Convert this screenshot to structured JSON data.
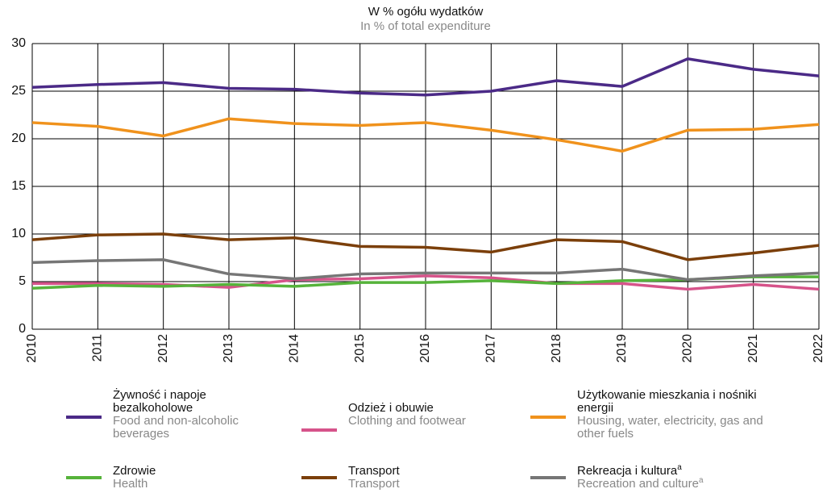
{
  "chart_data": {
    "type": "line",
    "title": "W % ogółu wydatków",
    "subtitle": "In % of total expenditure",
    "categories": [
      "2010",
      "2011",
      "2012",
      "2013",
      "2014",
      "2015",
      "2016",
      "2017",
      "2018",
      "2019",
      "2020",
      "2021",
      "2022"
    ],
    "ylim": [
      0,
      30
    ],
    "yticks": [
      0,
      5,
      10,
      15,
      20,
      25,
      30
    ],
    "grid": true,
    "series": [
      {
        "name": "Żywność i napoje bezalkoholowe",
        "name_en": "Food and non-alcoholic beverages",
        "color": "#4b2a87",
        "values": [
          25.4,
          25.7,
          25.9,
          25.3,
          25.2,
          24.8,
          24.6,
          25.0,
          26.1,
          25.5,
          28.4,
          27.3,
          26.6
        ]
      },
      {
        "name": "Odzież i obuwie",
        "name_en": "Clothing and footwear",
        "color": "#d6538a",
        "values": [
          4.8,
          4.8,
          4.7,
          4.4,
          5.2,
          5.3,
          5.6,
          5.4,
          4.8,
          4.8,
          4.2,
          4.7,
          4.2
        ]
      },
      {
        "name": "Użytkowanie mieszkania i nośniki energii",
        "name_en": "Housing, water, electricity, gas and other fuels",
        "color": "#f0921c",
        "values": [
          21.7,
          21.3,
          20.3,
          22.1,
          21.6,
          21.4,
          21.7,
          20.9,
          19.9,
          18.7,
          20.9,
          21.0,
          21.5
        ]
      },
      {
        "name": "Zdrowie",
        "name_en": "Health",
        "color": "#56b33b",
        "values": [
          4.3,
          4.6,
          4.5,
          4.7,
          4.5,
          4.9,
          4.9,
          5.1,
          4.8,
          5.1,
          5.2,
          5.5,
          5.5
        ]
      },
      {
        "name": "Transport",
        "name_en": "Transport",
        "color": "#7b3f0a",
        "values": [
          9.4,
          9.9,
          10.0,
          9.4,
          9.6,
          8.7,
          8.6,
          8.1,
          9.4,
          9.2,
          7.3,
          8.0,
          8.8
        ]
      },
      {
        "name": "Rekreacja i kultura",
        "name_en": "Recreation and culture",
        "footnote": "a",
        "color": "#767676",
        "values": [
          7.0,
          7.2,
          7.3,
          5.8,
          5.3,
          5.8,
          5.9,
          5.9,
          5.9,
          6.3,
          5.2,
          5.6,
          5.9
        ]
      }
    ]
  }
}
